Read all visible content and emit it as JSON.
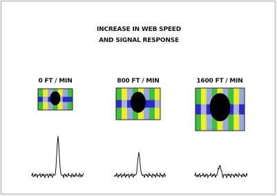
{
  "header": {
    "title_lines": [
      "INCREASE IN WEB SPEED",
      "AND SIGNAL RESPONSE"
    ]
  },
  "panels": [
    {
      "label": "0 FT / MIN"
    },
    {
      "label": "800 FT / MIN"
    },
    {
      "label": "1600 FT / MIN"
    }
  ]
}
